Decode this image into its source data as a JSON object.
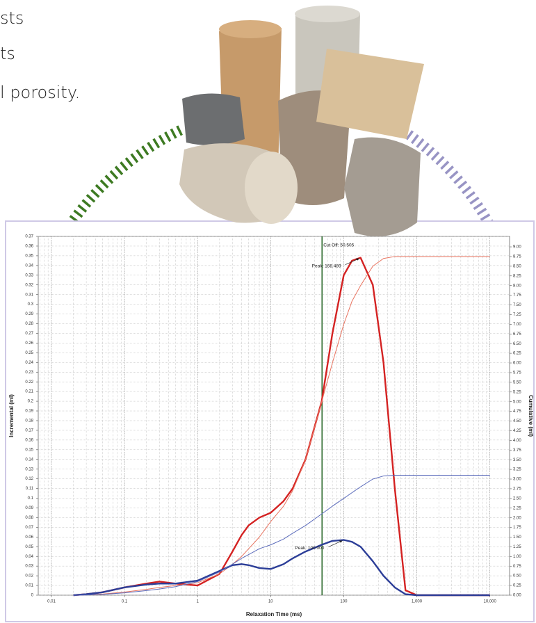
{
  "page": {
    "text_lines": [
      "sts",
      "ts",
      "l porosity."
    ]
  },
  "chart_data": {
    "type": "line",
    "x_label": "Relaxation Time (ms)",
    "y_label": "Incremental (ml)",
    "y2_label": "Cumulative (ml)",
    "log_x": true,
    "grid": true,
    "xlim": [
      0.0066,
      18600
    ],
    "xticks": [
      0.01,
      0.1,
      1,
      10,
      100,
      {
        "value": 1000,
        "label": "1,000"
      },
      {
        "value": 10000,
        "label": "10,000"
      }
    ],
    "ylim": [
      0,
      0.37
    ],
    "yticks": [
      0,
      0.01,
      0.02,
      0.03,
      0.04,
      0.05,
      0.06,
      0.07,
      0.08,
      0.09,
      0.1,
      0.11,
      0.12,
      0.13,
      0.14,
      0.15,
      0.16,
      0.17,
      0.18,
      0.19,
      0.2,
      0.21,
      0.22,
      0.23,
      0.24,
      0.25,
      0.26,
      0.27,
      0.28,
      0.29,
      0.3,
      0.31,
      0.32,
      0.33,
      0.34,
      0.35,
      0.36,
      0.37
    ],
    "y2lim": [
      0,
      9.27
    ],
    "y2ticks": [
      {
        "value": 0,
        "label": "0.00"
      },
      {
        "value": 0.25,
        "label": "0.25"
      },
      {
        "value": 0.5,
        "label": "0.50"
      },
      {
        "value": 0.75,
        "label": "0.75"
      },
      {
        "value": 1,
        "label": "1.00"
      },
      {
        "value": 1.25,
        "label": "1.25"
      },
      {
        "value": 1.5,
        "label": "1.50"
      },
      {
        "value": 1.75,
        "label": "1.75"
      },
      {
        "value": 2,
        "label": "2.00"
      },
      {
        "value": 2.25,
        "label": "2.25"
      },
      {
        "value": 2.5,
        "label": "2.50"
      },
      {
        "value": 2.75,
        "label": "2.75"
      },
      {
        "value": 3,
        "label": "3.00"
      },
      {
        "value": 3.25,
        "label": "3.25"
      },
      {
        "value": 3.5,
        "label": "3.50"
      },
      {
        "value": 3.75,
        "label": "3.75"
      },
      {
        "value": 4,
        "label": "4.00"
      },
      {
        "value": 4.25,
        "label": "4.25"
      },
      {
        "value": 4.5,
        "label": "4.50"
      },
      {
        "value": 4.75,
        "label": "4.75"
      },
      {
        "value": 5,
        "label": "5.00"
      },
      {
        "value": 5.25,
        "label": "5.25"
      },
      {
        "value": 5.5,
        "label": "5.50"
      },
      {
        "value": 5.75,
        "label": "5.75"
      },
      {
        "value": 6,
        "label": "6.00"
      },
      {
        "value": 6.25,
        "label": "6.25"
      },
      {
        "value": 6.5,
        "label": "6.50"
      },
      {
        "value": 6.75,
        "label": "6.75"
      },
      {
        "value": 7,
        "label": "7.00"
      },
      {
        "value": 7.25,
        "label": "7.25"
      },
      {
        "value": 7.5,
        "label": "7.50"
      },
      {
        "value": 7.75,
        "label": "7.75"
      },
      {
        "value": 8,
        "label": "8.00"
      },
      {
        "value": 8.25,
        "label": "8.25"
      },
      {
        "value": 8.5,
        "label": "8.50"
      },
      {
        "value": 8.75,
        "label": "8.75"
      },
      {
        "value": 9,
        "label": "9.00"
      }
    ],
    "cutoff": {
      "value": 50.505,
      "label": "Cut Off: 50.505",
      "color": "#2e6b2e"
    },
    "x": [
      0.02,
      0.03,
      0.05,
      0.1,
      0.2,
      0.3,
      0.5,
      1,
      2,
      3,
      4,
      5,
      7,
      10,
      15,
      20,
      30,
      50,
      70,
      100,
      130,
      170,
      250,
      350,
      500,
      700,
      1000,
      2000,
      5000,
      10000
    ],
    "series": [
      {
        "color": "#d42222",
        "width": 2.4,
        "peak_label": "Peak: 168.489",
        "values": [
          0,
          0.001,
          0.003,
          0.008,
          0.012,
          0.014,
          0.012,
          0.01,
          0.022,
          0.045,
          0.062,
          0.072,
          0.08,
          0.085,
          0.097,
          0.11,
          0.14,
          0.2,
          0.27,
          0.33,
          0.345,
          0.348,
          0.32,
          0.24,
          0.11,
          0.005,
          0,
          0,
          0,
          0
        ]
      },
      {
        "color": "#e8735f",
        "width": 1,
        "axis": "y2",
        "values": [
          0,
          0.01,
          0.03,
          0.08,
          0.15,
          0.2,
          0.25,
          0.32,
          0.55,
          0.8,
          1.0,
          1.2,
          1.5,
          1.9,
          2.3,
          2.7,
          3.5,
          5.0,
          6.0,
          7.0,
          7.6,
          8.0,
          8.5,
          8.7,
          8.75,
          8.75,
          8.75,
          8.75,
          8.75,
          8.75
        ]
      },
      {
        "color": "#2c3e98",
        "width": 2.4,
        "peak_label": "Peak: 100.000",
        "values": [
          0,
          0.001,
          0.003,
          0.008,
          0.011,
          0.012,
          0.012,
          0.015,
          0.025,
          0.031,
          0.032,
          0.031,
          0.028,
          0.027,
          0.032,
          0.038,
          0.045,
          0.052,
          0.056,
          0.057,
          0.055,
          0.05,
          0.035,
          0.02,
          0.008,
          0.001,
          0,
          0,
          0,
          0
        ]
      },
      {
        "color": "#5b6bbb",
        "width": 1,
        "axis": "y2",
        "values": [
          0,
          0.005,
          0.02,
          0.06,
          0.12,
          0.16,
          0.22,
          0.35,
          0.6,
          0.8,
          0.95,
          1.05,
          1.2,
          1.3,
          1.45,
          1.6,
          1.8,
          2.1,
          2.3,
          2.5,
          2.65,
          2.8,
          3.0,
          3.08,
          3.1,
          3.1,
          3.1,
          3.1,
          3.1,
          3.1
        ]
      }
    ]
  }
}
